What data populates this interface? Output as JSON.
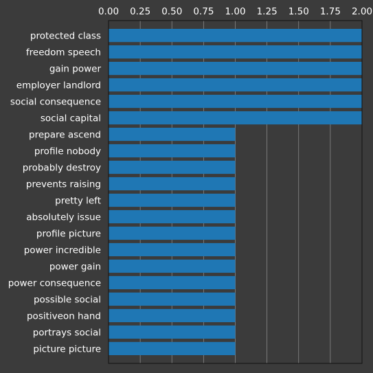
{
  "chart_data": {
    "type": "bar",
    "orientation": "horizontal",
    "x_axis_position": "top",
    "grid": true,
    "xlim": [
      0,
      2.0
    ],
    "xticks": [
      "0.00",
      "0.25",
      "0.50",
      "0.75",
      "1.00",
      "1.25",
      "1.50",
      "1.75",
      "2.00"
    ],
    "categories": [
      "protected class",
      "freedom speech",
      "gain power",
      "employer landlord",
      "social consequence",
      "social capital",
      "prepare ascend",
      "profile nobody",
      "probably destroy",
      "prevents raising",
      "pretty left",
      "absolutely issue",
      "profile picture",
      "power incredible",
      "power gain",
      "power consequence",
      "possible social",
      "positiveon hand",
      "portrays social",
      "picture picture"
    ],
    "values": [
      2,
      2,
      2,
      2,
      2,
      2,
      1,
      1,
      1,
      1,
      1,
      1,
      1,
      1,
      1,
      1,
      1,
      1,
      1,
      1
    ],
    "bar_color": "#1f77b4",
    "background_color": "#3b3b3b",
    "text_color": "#ffffff"
  }
}
